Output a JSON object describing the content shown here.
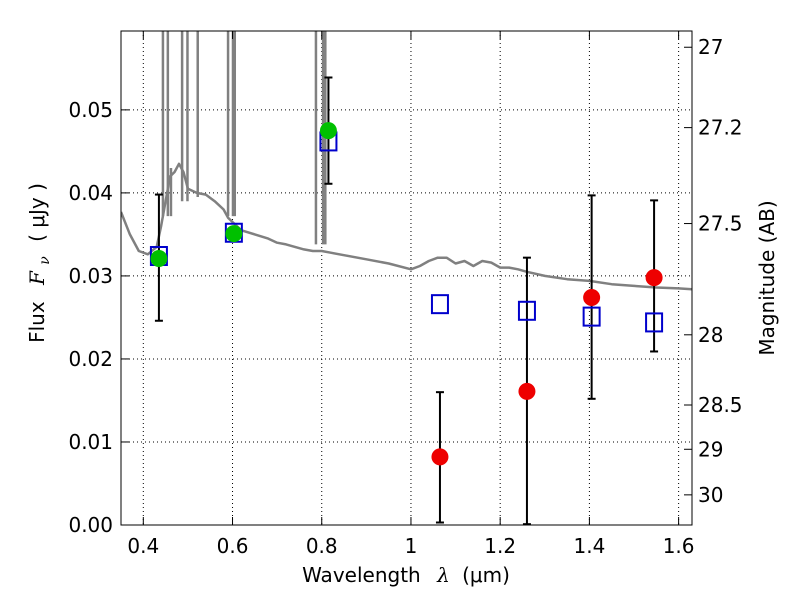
{
  "chart_data": {
    "type": "scatter",
    "xlabel": "Wavelength",
    "xlabel_symbol": "λ",
    "xlabel_unit": "(μm)",
    "ylabel": "Flux",
    "ylabel_symbol": "F",
    "ylabel_symbol_sub": "ν",
    "ylabel_unit": "( μJy )",
    "y2label": "Magnitude (AB)",
    "xlim": [
      0.35,
      1.63
    ],
    "ylim": [
      0.0,
      0.0595
    ],
    "x_ticks": [
      0.4,
      0.6,
      0.8,
      1.0,
      1.2,
      1.4,
      1.6
    ],
    "x_tick_labels": [
      "0.4",
      "0.6",
      "0.8",
      "1",
      "1.2",
      "1.4",
      "1.6"
    ],
    "y_ticks": [
      0.0,
      0.01,
      0.02,
      0.03,
      0.04,
      0.05
    ],
    "y_tick_labels": [
      "0.00",
      "0.01",
      "0.02",
      "0.03",
      "0.04",
      "0.05"
    ],
    "y2_ticks": [
      {
        "label": "27",
        "mag": 27.0
      },
      {
        "label": "27.2",
        "mag": 27.2
      },
      {
        "label": "27.5",
        "mag": 27.5
      },
      {
        "label": "28",
        "mag": 28.0
      },
      {
        "label": "28.5",
        "mag": 28.5
      },
      {
        "label": "29",
        "mag": 29.0
      },
      {
        "label": "30",
        "mag": 30.0
      }
    ],
    "grid": true,
    "series": [
      {
        "kind": "line",
        "color": "#808080",
        "x": [
          0.35,
          0.37,
          0.39,
          0.41,
          0.43,
          0.44,
          0.45,
          0.46,
          0.47,
          0.48,
          0.49,
          0.5,
          0.52,
          0.54,
          0.56,
          0.58,
          0.59,
          0.6,
          0.62,
          0.65,
          0.68,
          0.7,
          0.72,
          0.74,
          0.76,
          0.78,
          0.8,
          0.82,
          0.85,
          0.9,
          0.95,
          1.0,
          1.02,
          1.04,
          1.06,
          1.08,
          1.1,
          1.12,
          1.14,
          1.16,
          1.18,
          1.2,
          1.22,
          1.24,
          1.26,
          1.3,
          1.35,
          1.4,
          1.45,
          1.5,
          1.55,
          1.6,
          1.63
        ],
        "y": [
          0.0377,
          0.035,
          0.033,
          0.0326,
          0.0335,
          0.036,
          0.039,
          0.042,
          0.0425,
          0.0435,
          0.0425,
          0.0405,
          0.04,
          0.0398,
          0.039,
          0.038,
          0.037,
          0.0365,
          0.0355,
          0.035,
          0.0345,
          0.034,
          0.0338,
          0.0335,
          0.0332,
          0.033,
          0.033,
          0.0328,
          0.0325,
          0.032,
          0.0315,
          0.0308,
          0.0312,
          0.0318,
          0.0322,
          0.0322,
          0.0315,
          0.0318,
          0.0312,
          0.0318,
          0.0316,
          0.031,
          0.031,
          0.0308,
          0.0305,
          0.03,
          0.0296,
          0.0294,
          0.029,
          0.0288,
          0.0286,
          0.0285,
          0.0284
        ],
        "spikes": [
          {
            "x": 0.444,
            "y_top": 0.0595,
            "y_base": 0.0372
          },
          {
            "x": 0.455,
            "y_top": 0.0595,
            "y_base": 0.0372
          },
          {
            "x": 0.462,
            "y_top": 0.043,
            "y_base": 0.0372
          },
          {
            "x": 0.487,
            "y_top": 0.0595,
            "y_base": 0.039
          },
          {
            "x": 0.499,
            "y_top": 0.0595,
            "y_base": 0.039
          },
          {
            "x": 0.522,
            "y_top": 0.0595,
            "y_base": 0.0395
          },
          {
            "x": 0.59,
            "y_top": 0.0595,
            "y_base": 0.0372
          },
          {
            "x": 0.601,
            "y_top": 0.0595,
            "y_base": 0.0372
          },
          {
            "x": 0.605,
            "y_top": 0.0595,
            "y_base": 0.0372
          },
          {
            "x": 0.787,
            "y_top": 0.0595,
            "y_base": 0.0338
          },
          {
            "x": 0.803,
            "y_top": 0.0595,
            "y_base": 0.0338
          },
          {
            "x": 0.808,
            "y_top": 0.0595,
            "y_base": 0.0338
          }
        ]
      },
      {
        "kind": "errorbar",
        "color": "#000000",
        "points": [
          {
            "x": 0.435,
            "low": 0.0246,
            "high": 0.0398
          },
          {
            "x": 0.815,
            "low": 0.0411,
            "high": 0.0539
          },
          {
            "x": 1.065,
            "low": 0.0003,
            "high": 0.016
          },
          {
            "x": 1.26,
            "low": 0.0001,
            "high": 0.0322
          },
          {
            "x": 1.405,
            "low": 0.0152,
            "high": 0.0397
          },
          {
            "x": 1.545,
            "low": 0.0209,
            "high": 0.0391
          }
        ]
      },
      {
        "kind": "markers",
        "marker": "square-open",
        "color": "#0000cc",
        "x": [
          0.435,
          0.603,
          0.815,
          1.065,
          1.26,
          1.405,
          1.545
        ],
        "y": [
          0.0324,
          0.0352,
          0.0462,
          0.0266,
          0.0258,
          0.0251,
          0.0244
        ]
      },
      {
        "kind": "markers",
        "marker": "circle",
        "color": "#00c000",
        "x": [
          0.435,
          0.603,
          0.815
        ],
        "y": [
          0.0321,
          0.0351,
          0.0475
        ]
      },
      {
        "kind": "markers",
        "marker": "circle",
        "color": "#ee0000",
        "x": [
          1.065,
          1.26,
          1.405,
          1.545
        ],
        "y": [
          0.0082,
          0.0161,
          0.0274,
          0.0298
        ]
      }
    ]
  }
}
